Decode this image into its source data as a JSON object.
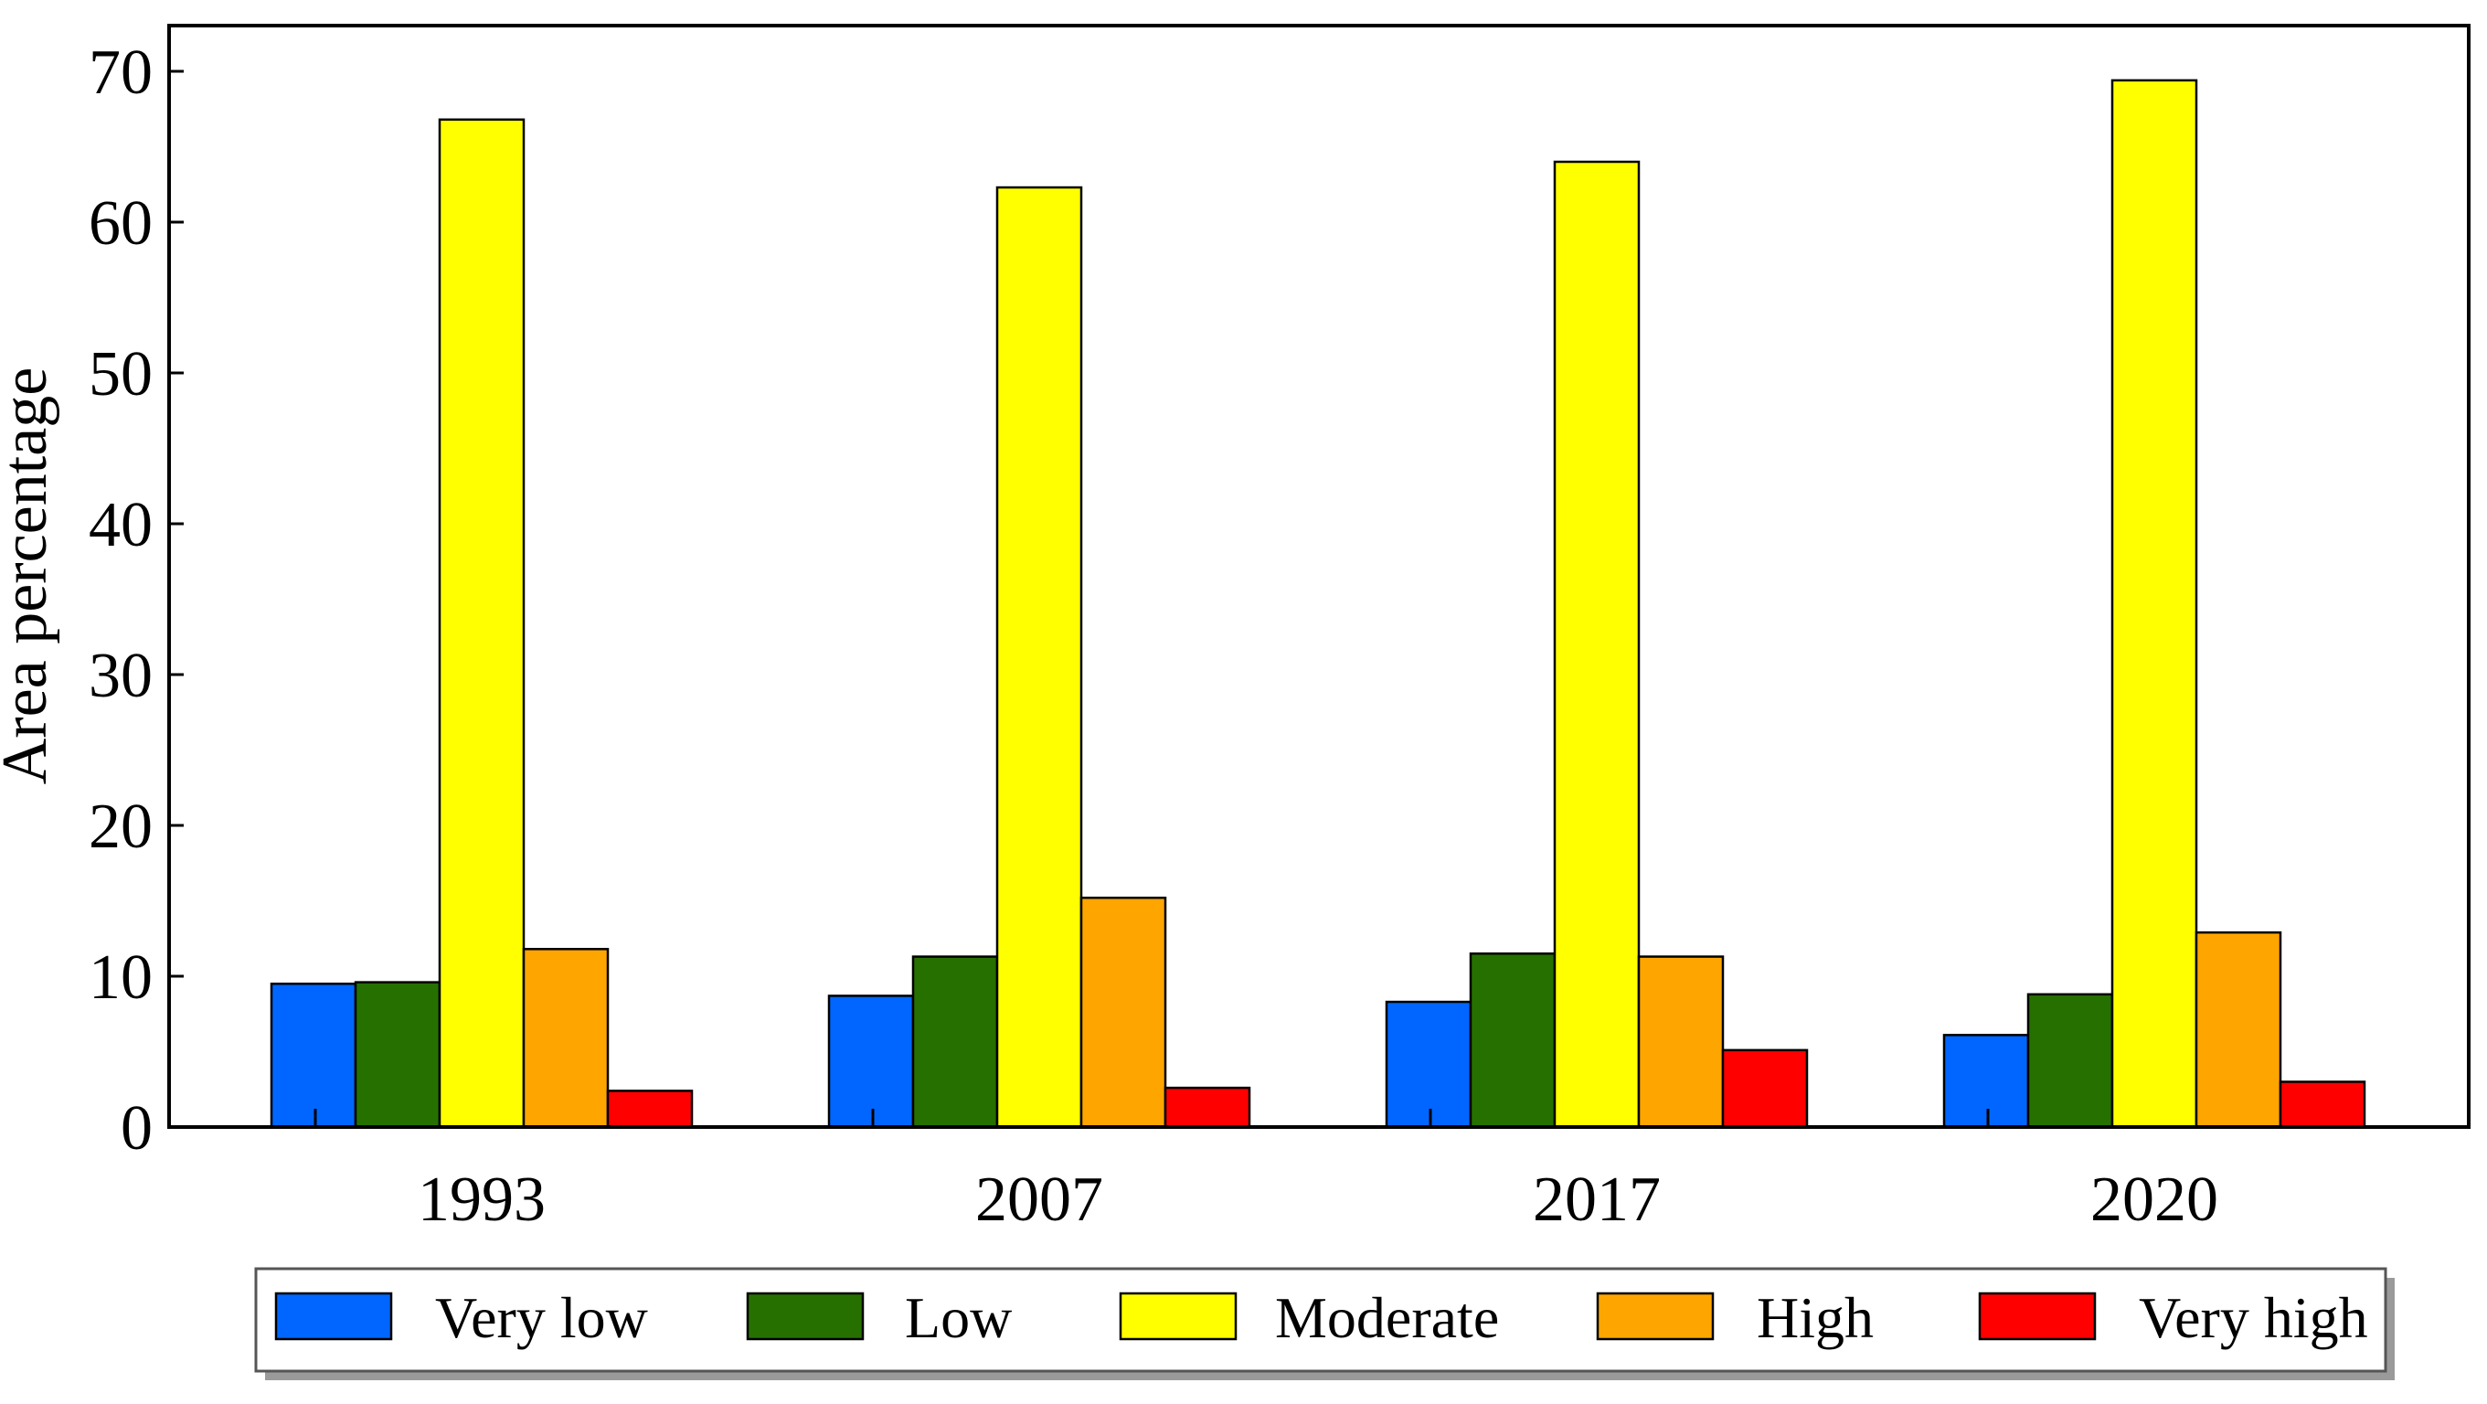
{
  "chart_data": {
    "type": "bar",
    "title": "",
    "xlabel": "",
    "ylabel": "Area percentage",
    "ylim": [
      0,
      70
    ],
    "yticks": [
      "0",
      "10",
      "20",
      "30",
      "40",
      "50",
      "60",
      "70"
    ],
    "grid": false,
    "legend_position": "bottom",
    "categories": [
      "1993",
      "2007",
      "2017",
      "2020"
    ],
    "series": [
      {
        "name": "Very low",
        "color": "#0066ff",
        "values": [
          9.5,
          8.7,
          8.3,
          6.1
        ]
      },
      {
        "name": "Low",
        "color": "#267000",
        "values": [
          9.6,
          11.3,
          11.5,
          8.8
        ]
      },
      {
        "name": "Moderate",
        "color": "#ffff00",
        "values": [
          66.8,
          62.3,
          64.0,
          69.4
        ]
      },
      {
        "name": "High",
        "color": "#ffa500",
        "values": [
          11.8,
          15.2,
          11.3,
          12.9
        ]
      },
      {
        "name": "Very high",
        "color": "#ff0000",
        "values": [
          2.4,
          2.6,
          5.1,
          3.0
        ]
      }
    ]
  }
}
